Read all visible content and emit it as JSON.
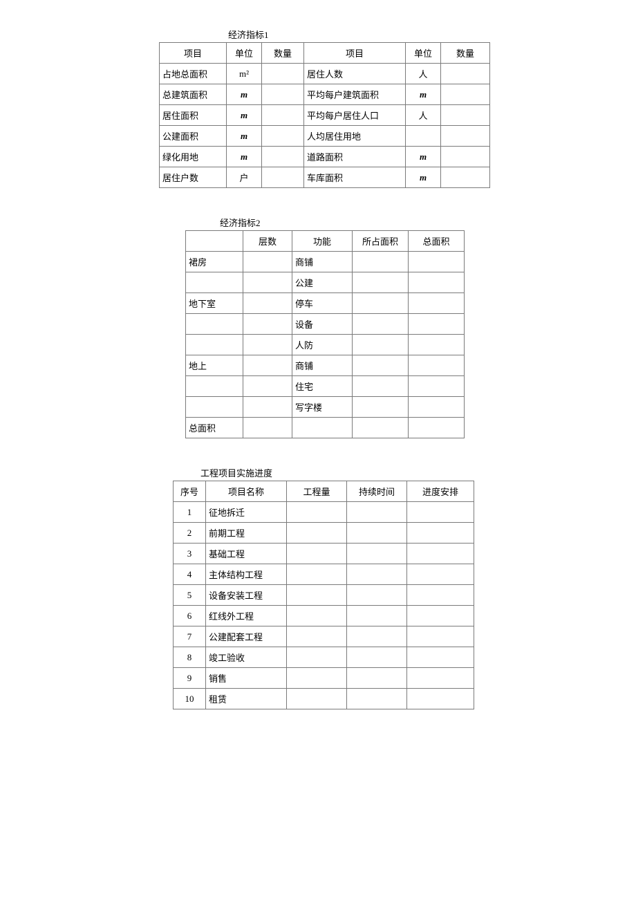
{
  "table1": {
    "title": "经济指标1",
    "headers": [
      "项目",
      "单位",
      "数量",
      "项目",
      "单位",
      "数量"
    ],
    "rows": [
      {
        "l_item": "占地总面积",
        "l_unit": "m²",
        "l_qty": "",
        "r_item": "居住人数",
        "r_unit": "人",
        "r_qty": ""
      },
      {
        "l_item": "总建筑面积",
        "l_unit": "m",
        "l_unit_italic": true,
        "l_qty": "",
        "r_item": "平均每户建筑面积",
        "r_unit": "m",
        "r_unit_italic": true,
        "r_qty": ""
      },
      {
        "l_item": "居住面积",
        "l_unit": "m",
        "l_unit_italic": true,
        "l_qty": "",
        "r_item": "平均每户居住人口",
        "r_unit": "人",
        "r_qty": ""
      },
      {
        "l_item": "公建面积",
        "l_unit": "m",
        "l_unit_italic": true,
        "l_qty": "",
        "r_item": "人均居住用地",
        "r_unit": "",
        "r_qty": ""
      },
      {
        "l_item": "绿化用地",
        "l_unit": "m",
        "l_unit_italic": true,
        "l_qty": "",
        "r_item": "道路面积",
        "r_unit": "m",
        "r_unit_italic": true,
        "r_qty": ""
      },
      {
        "l_item": "居住户数",
        "l_unit": "户",
        "l_qty": "",
        "r_item": "车库面积",
        "r_unit": "m",
        "r_unit_italic": true,
        "r_qty": ""
      }
    ]
  },
  "table2": {
    "title": "经济指标2",
    "headers": [
      "",
      "层数",
      "功能",
      "所占面积",
      "总面积"
    ],
    "rows": [
      {
        "c1": "裙房",
        "c2": "",
        "c3": "商铺",
        "c4": "",
        "c5": ""
      },
      {
        "c1": "",
        "c2": "",
        "c3": "公建",
        "c4": "",
        "c5": ""
      },
      {
        "c1": "地下室",
        "c2": "",
        "c3": "停车",
        "c4": "",
        "c5": ""
      },
      {
        "c1": "",
        "c2": "",
        "c3": "设备",
        "c4": "",
        "c5": ""
      },
      {
        "c1": "",
        "c2": "",
        "c3": "人防",
        "c4": "",
        "c5": ""
      },
      {
        "c1": "地上",
        "c2": "",
        "c3": "商铺",
        "c4": "",
        "c5": ""
      },
      {
        "c1": "",
        "c2": "",
        "c3": "住宅",
        "c4": "",
        "c5": ""
      },
      {
        "c1": "",
        "c2": "",
        "c3": "写字楼",
        "c4": "",
        "c5": ""
      },
      {
        "c1": "总面积",
        "c2": "",
        "c3": "",
        "c4": "",
        "c5": ""
      }
    ]
  },
  "table3": {
    "title": "工程项目实施进度",
    "headers": [
      "序号",
      "项目名称",
      "工程量",
      "持续时间",
      "进度安排"
    ],
    "rows": [
      {
        "no": "1",
        "name": "征地拆迁",
        "qty": "",
        "dur": "",
        "plan": ""
      },
      {
        "no": "2",
        "name": "前期工程",
        "qty": "",
        "dur": "",
        "plan": ""
      },
      {
        "no": "3",
        "name": "基础工程",
        "qty": "",
        "dur": "",
        "plan": ""
      },
      {
        "no": "4",
        "name": "主体结构工程",
        "qty": "",
        "dur": "",
        "plan": ""
      },
      {
        "no": "5",
        "name": "设备安装工程",
        "qty": "",
        "dur": "",
        "plan": ""
      },
      {
        "no": "6",
        "name": "红线外工程",
        "qty": "",
        "dur": "",
        "plan": ""
      },
      {
        "no": "7",
        "name": "公建配套工程",
        "qty": "",
        "dur": "",
        "plan": ""
      },
      {
        "no": "8",
        "name": "竣工验收",
        "qty": "",
        "dur": "",
        "plan": ""
      },
      {
        "no": "9",
        "name": "销售",
        "qty": "",
        "dur": "",
        "plan": ""
      },
      {
        "no": "10",
        "name": "租赁",
        "qty": "",
        "dur": "",
        "plan": ""
      }
    ]
  }
}
